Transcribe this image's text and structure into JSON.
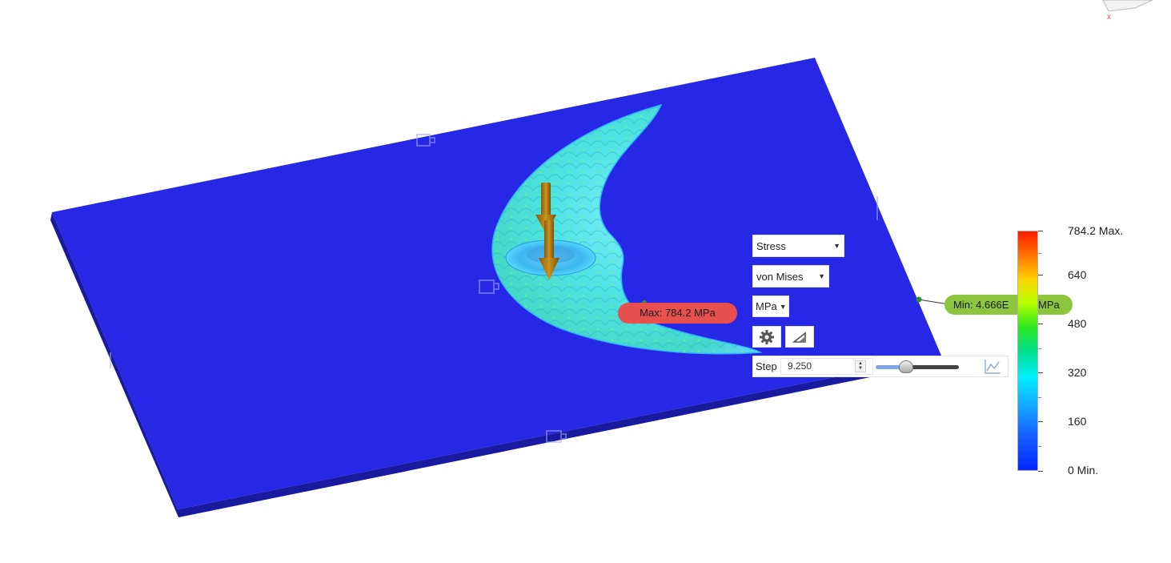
{
  "result_panel": {
    "result_type": "Stress",
    "result_component": "von Mises",
    "unit": "MPa",
    "step_label": "Step",
    "step_value": "9.250",
    "step_slider_level": 0.38
  },
  "probes": {
    "max_label": "Max: 784.2 MPa",
    "min_label": "Min: 4.666E",
    "min_unit": "MPa"
  },
  "legend": {
    "labels": [
      "784.2 Max.",
      "640",
      "480",
      "320",
      "160",
      "0 Min."
    ]
  },
  "colors": {
    "plate_top": "#2727e6",
    "plate_side": "#1a1a9e",
    "part_base": "#4fe6e0",
    "max_probe": "#e8504f",
    "min_probe": "#8cc63f",
    "load_arrow": "#b07a1a"
  },
  "icons": {
    "settings": "gear-icon",
    "contour": "triangle-icon",
    "graph": "line-graph-icon",
    "spinner": "spinner-arrows-icon"
  }
}
